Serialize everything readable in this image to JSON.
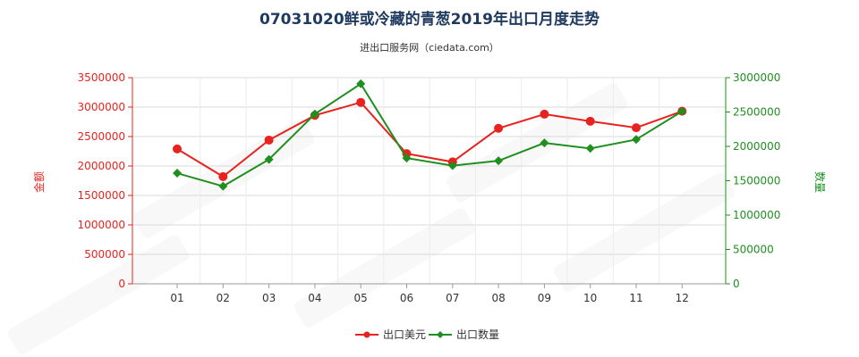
{
  "chart_data": {
    "type": "line",
    "title": "07031020鲜或冷藏的青葱2019年出口月度走势",
    "subtitle": "进出口服务网（ciedata.com）",
    "categories": [
      "01",
      "02",
      "03",
      "04",
      "05",
      "06",
      "07",
      "08",
      "09",
      "10",
      "11",
      "12"
    ],
    "left_axis": {
      "label": "金额",
      "ylim": [
        0,
        3500000
      ],
      "ticks": [
        "0",
        "500000",
        "1000000",
        "1500000",
        "2000000",
        "2500000",
        "3000000",
        "3500000"
      ],
      "color": "#e8231f"
    },
    "right_axis": {
      "label": "数量",
      "ylim": [
        0,
        3000000
      ],
      "ticks": [
        "0",
        "500000",
        "1000000",
        "1500000",
        "2000000",
        "2500000",
        "3000000"
      ],
      "color": "#1f8f1f"
    },
    "series": [
      {
        "name": "出口美元",
        "axis": "left",
        "color": "#e8231f",
        "values": [
          2290000,
          1820000,
          2440000,
          2860000,
          3080000,
          2210000,
          2070000,
          2640000,
          2880000,
          2760000,
          2650000,
          2930000
        ]
      },
      {
        "name": "出口数量",
        "axis": "right",
        "color": "#1f8f1f",
        "values": [
          1610000,
          1420000,
          1810000,
          2470000,
          2910000,
          1830000,
          1720000,
          1790000,
          2050000,
          1970000,
          2100000,
          2510000
        ]
      }
    ],
    "grid": true,
    "legend_position": "bottom-center"
  }
}
